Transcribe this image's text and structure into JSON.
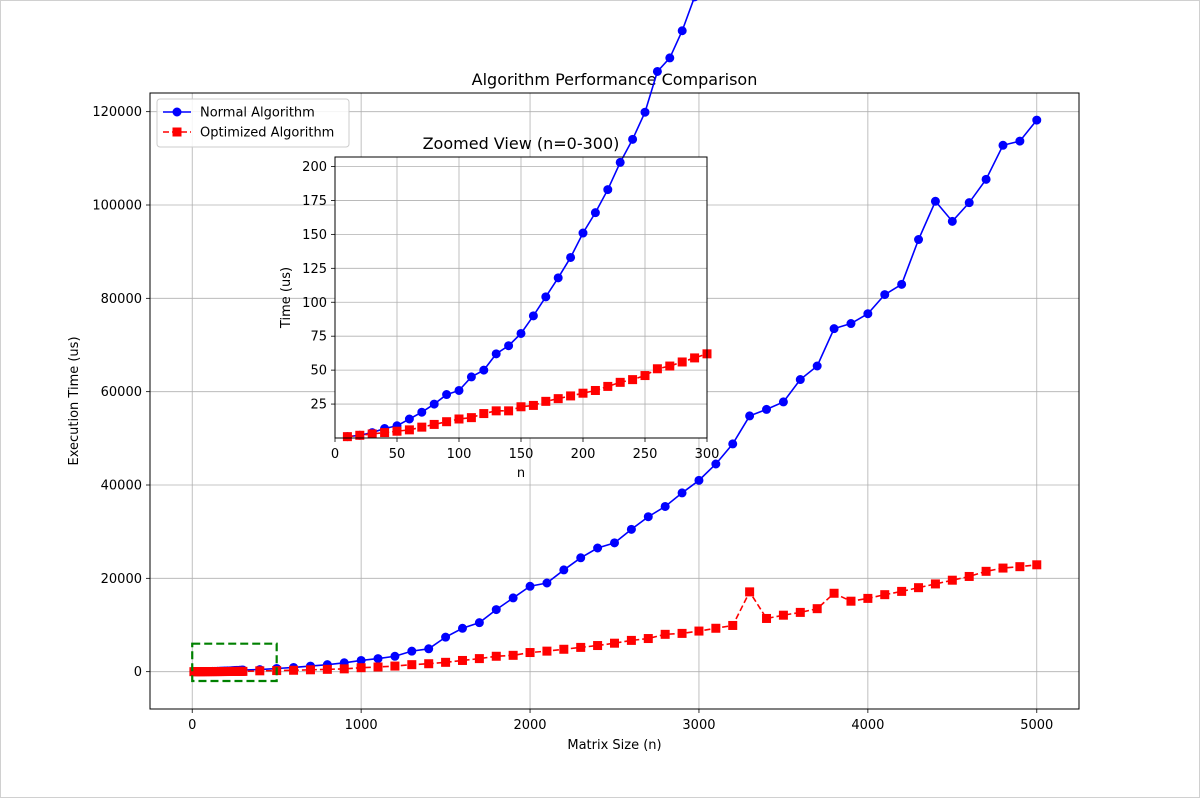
{
  "chart_data": [
    {
      "type": "line",
      "title": "Algorithm Performance Comparison",
      "xlabel": "Matrix Size (n)",
      "ylabel": "Execution Time (us)",
      "xlim": [
        -250,
        5250
      ],
      "ylim": [
        -8000,
        124000
      ],
      "xticks": [
        0,
        1000,
        2000,
        3000,
        4000,
        5000
      ],
      "yticks": [
        0,
        20000,
        40000,
        60000,
        80000,
        100000,
        120000
      ],
      "grid": true,
      "legend_position": "upper-left",
      "series": [
        {
          "name": "Normal Algorithm",
          "color": "#0000ff",
          "marker": "circle",
          "linestyle": "solid",
          "x": [
            10,
            20,
            30,
            40,
            50,
            60,
            70,
            80,
            90,
            100,
            110,
            120,
            130,
            140,
            150,
            160,
            170,
            180,
            190,
            200,
            210,
            220,
            230,
            240,
            250,
            260,
            270,
            280,
            290,
            300,
            400,
            500,
            600,
            700,
            800,
            900,
            1000,
            1100,
            1200,
            1300,
            1400,
            1500,
            1600,
            1700,
            1800,
            1900,
            2000,
            2100,
            2200,
            2300,
            2400,
            2500,
            2600,
            2700,
            2800,
            2900,
            3000,
            3100,
            3200,
            3300,
            3400,
            3500,
            3600,
            3700,
            3800,
            3900,
            4000,
            4100,
            4200,
            4300,
            4400,
            4500,
            4600,
            4700,
            4800,
            4900,
            5000
          ],
          "y": [
            1,
            2,
            4,
            7,
            9,
            14,
            19,
            25,
            32,
            35,
            45,
            50,
            62,
            68,
            77,
            90,
            104,
            118,
            133,
            151,
            166,
            183,
            203,
            220,
            240,
            270,
            280,
            300,
            325,
            350,
            450,
            680,
            900,
            1200,
            1500,
            1900,
            2400,
            2800,
            3300,
            4400,
            4900,
            7400,
            9300,
            10500,
            13300,
            15800,
            18300,
            19000,
            21800,
            24400,
            26500,
            27600,
            30500,
            33200,
            35400,
            38300,
            41000,
            44500,
            48800,
            54800,
            56200,
            57800,
            62600,
            65500,
            73500,
            74600,
            76700,
            80800,
            83000,
            92600,
            100800,
            96500,
            100500,
            105500,
            112800,
            113700,
            118200
          ]
        },
        {
          "name": "Optimized Algorithm",
          "color": "#ff0000",
          "marker": "square",
          "linestyle": "dashed",
          "x": [
            10,
            20,
            30,
            40,
            50,
            60,
            70,
            80,
            90,
            100,
            110,
            120,
            130,
            140,
            150,
            160,
            170,
            180,
            190,
            200,
            210,
            220,
            230,
            240,
            250,
            260,
            270,
            280,
            290,
            300,
            400,
            500,
            600,
            700,
            800,
            900,
            1000,
            1100,
            1200,
            1300,
            1400,
            1500,
            1600,
            1700,
            1800,
            1900,
            2000,
            2100,
            2200,
            2300,
            2400,
            2500,
            2600,
            2700,
            2800,
            2900,
            3000,
            3100,
            3200,
            3300,
            3400,
            3500,
            3600,
            3700,
            3800,
            3900,
            4000,
            4100,
            4200,
            4300,
            4400,
            4500,
            4600,
            4700,
            4800,
            4900,
            5000
          ],
          "y": [
            1,
            2,
            3,
            4,
            5,
            6,
            8,
            10,
            12,
            14,
            15,
            18,
            20,
            20,
            23,
            24,
            27,
            29,
            31,
            33,
            35,
            38,
            41,
            43,
            46,
            51,
            53,
            56,
            59,
            62,
            180,
            230,
            300,
            400,
            500,
            600,
            850,
            1000,
            1200,
            1500,
            1700,
            2000,
            2400,
            2800,
            3300,
            3500,
            4100,
            4400,
            4800,
            5200,
            5600,
            6100,
            6700,
            7100,
            8000,
            8200,
            8700,
            9300,
            9900,
            17100,
            11400,
            12100,
            12700,
            13500,
            16800,
            15100,
            15700,
            16500,
            17200,
            18000,
            18800,
            19600,
            20400,
            21500,
            22200,
            22500,
            22900
          ]
        }
      ],
      "annotations": [
        {
          "type": "dashed-rectangle",
          "color": "#008000",
          "x_range": [
            0,
            500
          ],
          "y_range": [
            -2000,
            6000
          ]
        }
      ]
    },
    {
      "type": "line",
      "title": "Zoomed View (n=0-300)",
      "xlabel": "n",
      "ylabel": "Time (us)",
      "xlim": [
        0,
        300
      ],
      "ylim": [
        0,
        207
      ],
      "xticks": [
        0,
        50,
        100,
        150,
        200,
        250,
        300
      ],
      "yticks": [
        25,
        50,
        75,
        100,
        125,
        150,
        175,
        200
      ],
      "grid": true,
      "series": [
        {
          "ref": "Normal Algorithm",
          "color": "#0000ff",
          "marker": "circle",
          "linestyle": "solid"
        },
        {
          "ref": "Optimized Algorithm",
          "color": "#ff0000",
          "marker": "square",
          "linestyle": "dashed"
        }
      ]
    }
  ]
}
